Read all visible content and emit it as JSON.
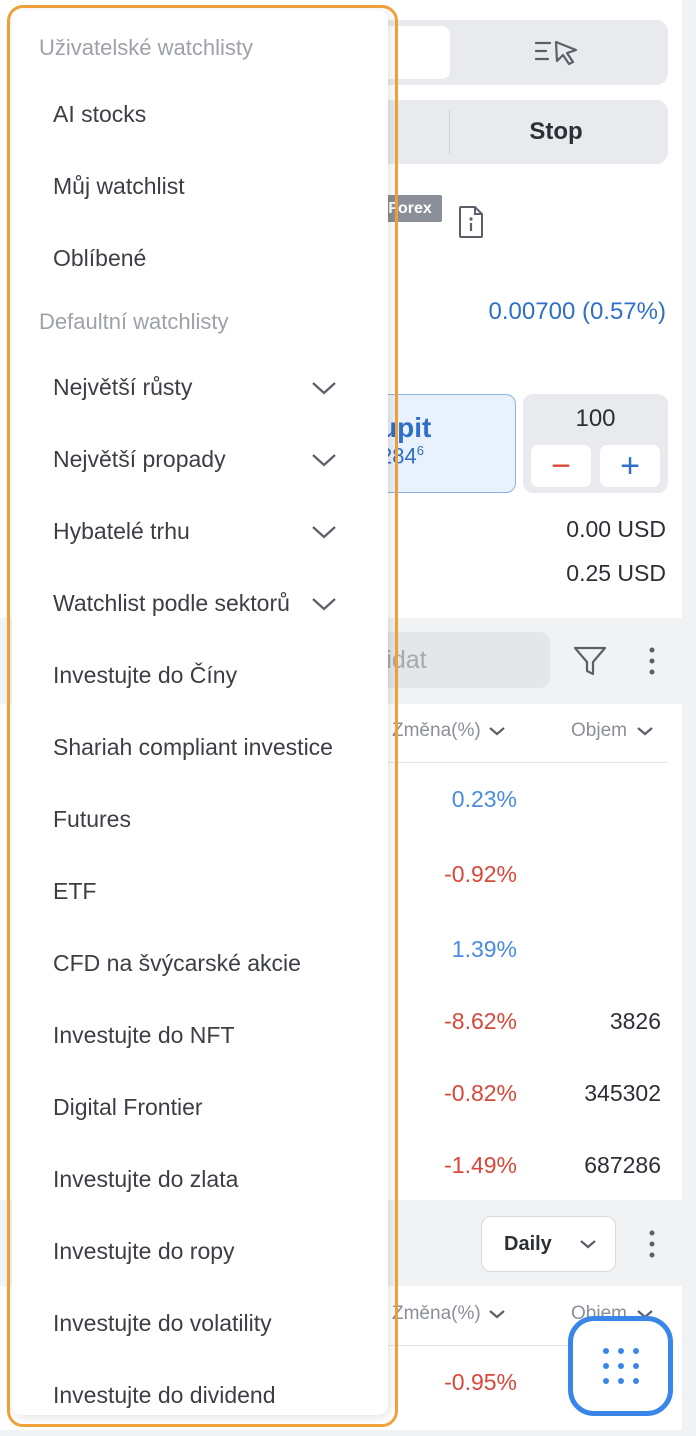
{
  "background": {
    "stop_label": "Stop",
    "forex_tag": "Forex",
    "price_change": "0.00700 (0.57%)",
    "buy_label": "upit",
    "buy_price_main": "284",
    "buy_price_sup": "6",
    "quantity": "100",
    "qty_minus": "−",
    "qty_plus": "+",
    "usd_line1": "0.00 USD",
    "usd_line2": "0.25 USD",
    "add_placeholder": "řidat",
    "col_change": "Změna(%)",
    "col_volume": "Objem",
    "rows": [
      {
        "change": "0.23%",
        "volume": ""
      },
      {
        "change": "-0.92%",
        "volume": ""
      },
      {
        "change": "1.39%",
        "volume": ""
      },
      {
        "change": "-8.62%",
        "volume": "3826"
      },
      {
        "change": "-0.82%",
        "volume": "345302"
      },
      {
        "change": "-1.49%",
        "volume": "687286"
      }
    ],
    "period_select": "Daily",
    "col_change_2": "Změna(%)",
    "col_volume_2": "Objem",
    "row2_change": "-0.95%"
  },
  "dropdown": {
    "user_section_title": "Uživatelské watchlisty",
    "user_items": [
      "AI stocks",
      "Můj watchlist",
      "Oblíbené"
    ],
    "default_section_title": "Defaultní watchlisty",
    "default_items": [
      "Největší růsty",
      "Největší propady",
      "Hybatelé trhu",
      "Watchlist podle sektorů",
      "Investujte do Číny",
      "Shariah compliant investice",
      "Futures",
      "ETF",
      "CFD na švýcarské akcie",
      "Investujte do NFT",
      "Digital Frontier",
      "Investujte do zlata",
      "Investujte do ropy",
      "Investujte do volatility",
      "Investujte do dividend"
    ]
  },
  "colors": {
    "accent_blue": "#2f6fc7",
    "negative_red": "#d9473b",
    "positive_blue": "#4a8be0",
    "highlight_orange": "#f0a23c"
  }
}
